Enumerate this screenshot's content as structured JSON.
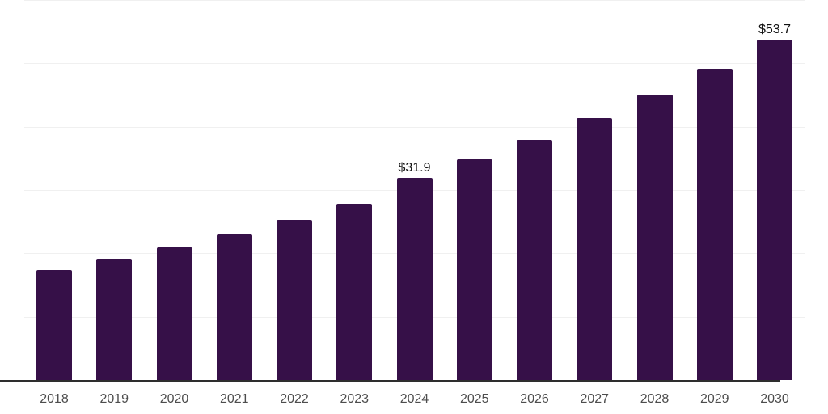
{
  "page": {
    "background": "#ffffff"
  },
  "chart_data": {
    "type": "bar",
    "title": "",
    "xlabel": "",
    "ylabel": "",
    "categories": [
      "2018",
      "2019",
      "2020",
      "2021",
      "2022",
      "2023",
      "2024",
      "2025",
      "2026",
      "2027",
      "2028",
      "2029",
      "2030"
    ],
    "values": [
      17.4,
      19.1,
      21.0,
      23.0,
      25.3,
      27.8,
      31.9,
      34.8,
      37.9,
      41.4,
      45.1,
      49.2,
      53.7
    ],
    "data_labels": {
      "2024": "$31.9",
      "2030": "$53.7"
    },
    "ylim": [
      0,
      60
    ],
    "grid_step": 10,
    "grid": true,
    "legend": false,
    "bar_color": "#361048",
    "gridline_color": "#f0f0f0",
    "axis_line_color": "#2e2e2e",
    "tick_label_color": "#4d4d4d",
    "data_label_color": "#111111"
  }
}
